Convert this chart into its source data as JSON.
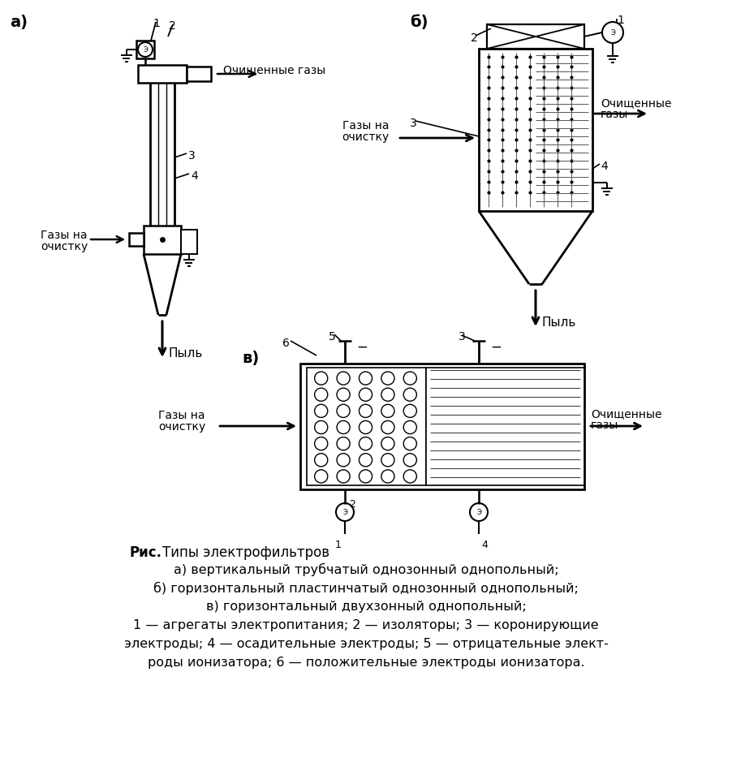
{
  "bg_color": "#ffffff",
  "black": "#000000",
  "label_a": "а)",
  "label_b": "б)",
  "label_v": "в)",
  "cap_bold": "Рис.",
  "cap_rest": "        Типы электрофильтров",
  "cap_line1": "а) вертикальный трубчатый однозонный однопольный;",
  "cap_line2": "б) горизонтальный пластинчатый однозонный однопольный;",
  "cap_line3": "в) горизонтальный двухзонный однопольный;",
  "cap_line4": "1 — агрегаты электропитания; 2 — изоляторы; 3 — коронирующие",
  "cap_line5": "электроды; 4 — осадительные электроды; 5 — отрицательные элект-",
  "cap_line6": "роды ионизатора; 6 — положительные электроды ионизатора."
}
